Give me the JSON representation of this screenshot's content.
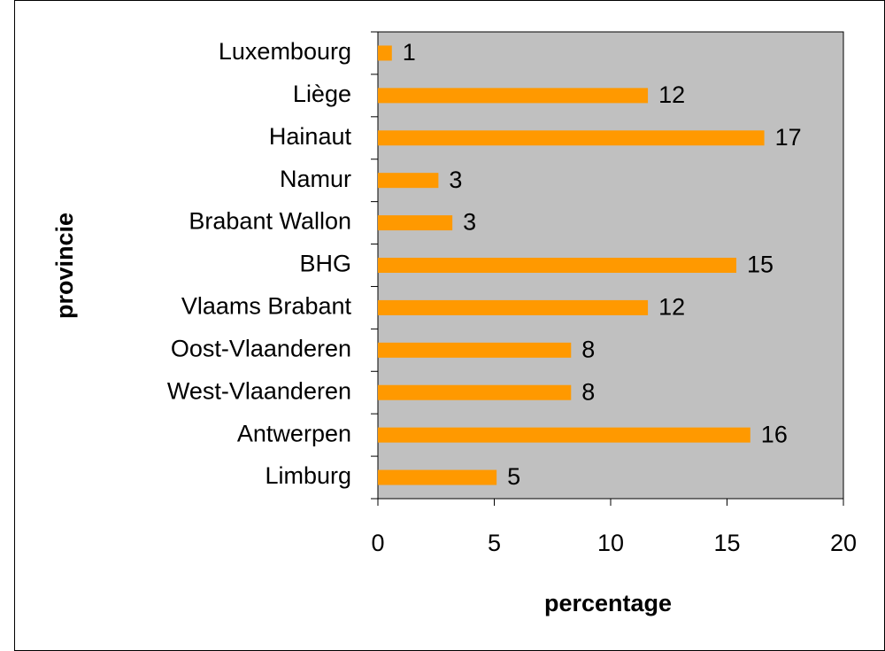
{
  "chart_data": {
    "type": "bar",
    "orientation": "horizontal",
    "x_label": "percentage",
    "y_label": "provincie",
    "categories": [
      "Luxembourg",
      "Liège",
      "Hainaut",
      "Namur",
      "Brabant Wallon",
      "BHG",
      "Vlaams Brabant",
      "Oost-Vlaanderen",
      "West-Vlaanderen",
      "Antwerpen",
      "Limburg"
    ],
    "values": [
      0.6,
      11.6,
      16.6,
      2.6,
      3.2,
      15.4,
      11.6,
      8.3,
      8.3,
      16.0,
      5.1
    ],
    "value_labels": [
      "1",
      "12",
      "17",
      "3",
      "3",
      "15",
      "12",
      "8",
      "8",
      "16",
      "5"
    ],
    "color": "#ff9900",
    "xlim": [
      0,
      20
    ],
    "xticks": [
      0,
      5,
      10,
      15,
      20
    ],
    "grid": false
  }
}
